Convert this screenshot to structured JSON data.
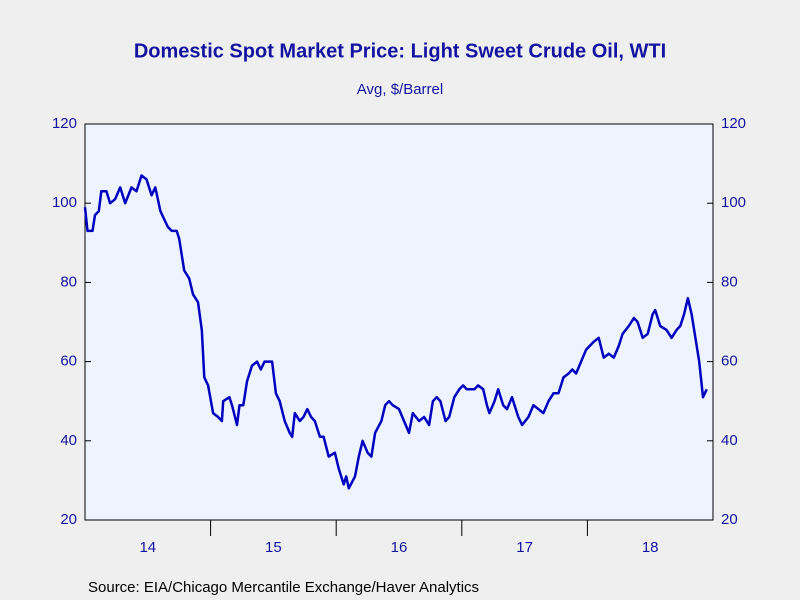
{
  "chart_data": {
    "type": "line",
    "title": "Domestic Spot Market Price: Light Sweet Crude Oil, WTI",
    "subtitle": "Avg, $/Barrel",
    "source": "Source:  EIA/Chicago Mercantile Exchange/Haver Analytics",
    "xlim": [
      14,
      19
    ],
    "xticks": [
      {
        "value": 14.5,
        "label": "14"
      },
      {
        "value": 15.5,
        "label": "15"
      },
      {
        "value": 16.5,
        "label": "16"
      },
      {
        "value": 17.5,
        "label": "17"
      },
      {
        "value": 18.5,
        "label": "18"
      }
    ],
    "ylim": [
      20,
      120
    ],
    "yticks": [
      20,
      40,
      60,
      80,
      100,
      120
    ],
    "series": [
      {
        "color": "#0000c0",
        "x": [
          14.0,
          14.02,
          14.06,
          14.08,
          14.11,
          14.13,
          14.17,
          14.2,
          14.24,
          14.28,
          14.32,
          14.37,
          14.41,
          14.45,
          14.49,
          14.53,
          14.56,
          14.6,
          14.63,
          14.66,
          14.69,
          14.73,
          14.75,
          14.79,
          14.83,
          14.86,
          14.9,
          14.93,
          14.95,
          14.98,
          15.02,
          15.06,
          15.09,
          15.1,
          15.15,
          15.17,
          15.21,
          15.23,
          15.26,
          15.29,
          15.33,
          15.37,
          15.4,
          15.43,
          15.49,
          15.52,
          15.55,
          15.59,
          15.63,
          15.65,
          15.67,
          15.71,
          15.74,
          15.77,
          15.8,
          15.83,
          15.87,
          15.9,
          15.94,
          15.99,
          16.02,
          16.06,
          16.08,
          16.1,
          16.15,
          16.18,
          16.21,
          16.25,
          16.28,
          16.31,
          16.36,
          16.39,
          16.42,
          16.45,
          16.5,
          16.54,
          16.58,
          16.61,
          16.66,
          16.7,
          16.74,
          16.77,
          16.8,
          16.83,
          16.87,
          16.9,
          16.94,
          16.98,
          17.01,
          17.04,
          17.1,
          17.13,
          17.17,
          17.2,
          17.22,
          17.26,
          17.29,
          17.33,
          17.36,
          17.4,
          17.45,
          17.48,
          17.53,
          17.57,
          17.61,
          17.65,
          17.69,
          17.73,
          17.77,
          17.81,
          17.85,
          17.88,
          17.91,
          17.95,
          17.99,
          18.05,
          18.09,
          18.13,
          18.17,
          18.21,
          18.25,
          18.28,
          18.33,
          18.37,
          18.4,
          18.44,
          18.48,
          18.52,
          18.54,
          18.58,
          18.63,
          18.67,
          18.71,
          18.74,
          18.77,
          18.8,
          18.83,
          18.86,
          18.89,
          18.92,
          18.95
        ],
        "values": [
          99,
          93,
          93,
          97,
          98,
          103,
          103,
          100,
          101,
          104,
          100,
          104,
          103,
          107,
          106,
          102,
          104,
          98,
          96,
          94,
          93,
          93,
          91,
          83,
          81,
          77,
          75,
          68,
          56,
          54,
          47,
          46,
          45,
          50,
          51,
          49,
          44,
          49,
          49,
          55,
          59,
          60,
          58,
          60,
          60,
          52,
          50,
          45,
          42,
          41,
          47,
          45,
          46,
          48,
          46,
          45,
          41,
          41,
          36,
          37,
          33,
          29,
          31,
          28,
          31,
          36,
          40,
          37,
          36,
          42,
          45,
          49,
          50,
          49,
          48,
          45,
          42,
          47,
          45,
          46,
          44,
          50,
          51,
          50,
          45,
          46,
          51,
          53,
          54,
          53,
          53,
          54,
          53,
          49,
          47,
          50,
          53,
          49,
          48,
          51,
          46,
          44,
          46,
          49,
          48,
          47,
          50,
          52,
          52,
          56,
          57,
          58,
          57,
          60,
          63,
          65,
          66,
          61,
          62,
          61,
          64,
          67,
          69,
          71,
          70,
          66,
          67,
          72,
          73,
          69,
          68,
          66,
          68,
          69,
          72,
          76,
          72,
          66,
          60,
          51,
          53
        ]
      }
    ]
  }
}
